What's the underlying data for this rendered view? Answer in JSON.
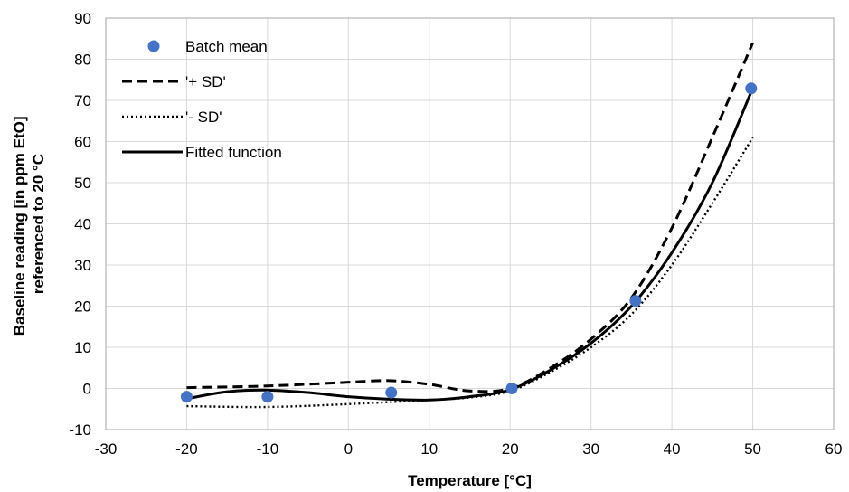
{
  "chart_data": {
    "type": "scatter",
    "title": "",
    "xlabel": "Temperature [°C]",
    "ylabel_lines": [
      "Baseline reading [in ppm EtO]",
      "referenced to 20 °C"
    ],
    "xlim": [
      -30,
      60
    ],
    "ylim": [
      -10,
      90
    ],
    "x_ticks": [
      -30,
      -20,
      -10,
      0,
      10,
      20,
      30,
      40,
      50,
      60
    ],
    "y_ticks": [
      -10,
      0,
      10,
      20,
      30,
      40,
      50,
      60,
      70,
      80,
      90
    ],
    "x_tick_labels": [
      "-30",
      "-20",
      "-10",
      "0",
      "10",
      "20",
      "30",
      "40",
      "50",
      "60"
    ],
    "y_tick_labels": [
      "-10",
      "0",
      "10",
      "20",
      "30",
      "40",
      "50",
      "60",
      "70",
      "80",
      "90"
    ],
    "grid": true,
    "legend_position": "top-left",
    "series": [
      {
        "name": "Batch mean",
        "kind": "markers",
        "color": "#4472C4",
        "x": [
          -20,
          -10,
          5.3,
          20.2,
          35.5,
          49.8
        ],
        "y": [
          -2,
          -2,
          -1,
          0,
          21.3,
          72.9
        ]
      },
      {
        "name": "'+ SD'",
        "kind": "dashed",
        "color": "#000000",
        "x": [
          -20,
          -10,
          0,
          5,
          10,
          15,
          20,
          25,
          30,
          35,
          40,
          45,
          50
        ],
        "y": [
          0.2,
          0.6,
          1.5,
          1.9,
          1.0,
          -0.6,
          0.0,
          5.0,
          12.0,
          22.0,
          39.0,
          61.0,
          84.0
        ]
      },
      {
        "name": "'- SD'",
        "kind": "dotted",
        "color": "#000000",
        "x": [
          -20,
          -10,
          0,
          10,
          15,
          20,
          25,
          30,
          35,
          40,
          45,
          50
        ],
        "y": [
          -4.3,
          -4.5,
          -3.8,
          -2.8,
          -2.2,
          -0.6,
          4.0,
          10.0,
          18.0,
          30.0,
          45.0,
          61.0
        ]
      },
      {
        "name": "Fitted function",
        "kind": "solid",
        "color": "#000000",
        "x": [
          -20,
          -15,
          -10,
          -5,
          0,
          5,
          10,
          15,
          20,
          25,
          30,
          35,
          40,
          45,
          50
        ],
        "y": [
          -2.5,
          -0.8,
          -0.4,
          -1.0,
          -2.0,
          -2.6,
          -2.8,
          -2.0,
          -0.3,
          4.5,
          11.0,
          20.0,
          33.0,
          50.0,
          73.0
        ]
      }
    ]
  }
}
